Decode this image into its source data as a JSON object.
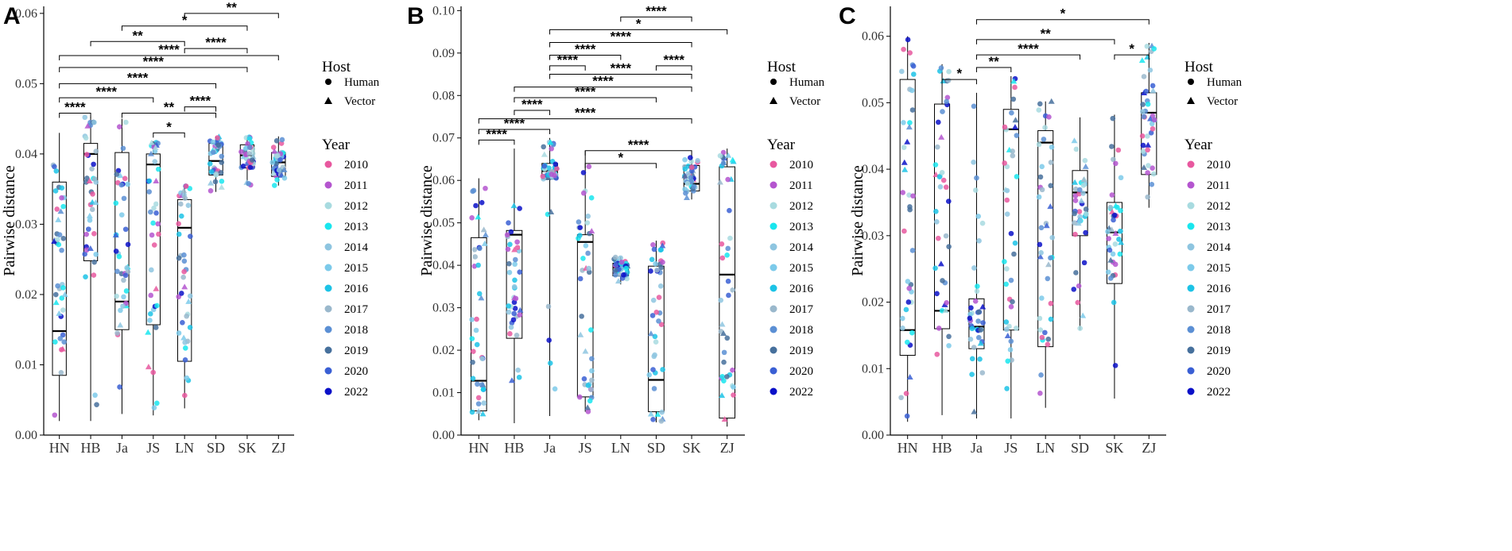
{
  "figure": {
    "categories": [
      "HN",
      "HB",
      "Ja",
      "JS",
      "LN",
      "SD",
      "SK",
      "ZJ"
    ],
    "ylabel": "Pairwise distance",
    "legend": {
      "host_title": "Host",
      "host_items": [
        {
          "label": "Human",
          "shape": "circle"
        },
        {
          "label": "Vector",
          "shape": "triangle"
        }
      ],
      "year_title": "Year",
      "years": [
        {
          "label": "2010",
          "color": "#e8589f"
        },
        {
          "label": "2011",
          "color": "#b455cf"
        },
        {
          "label": "2012",
          "color": "#a8dbe0"
        },
        {
          "label": "2013",
          "color": "#19e6ee"
        },
        {
          "label": "2014",
          "color": "#8ec5e0"
        },
        {
          "label": "2015",
          "color": "#7ccaea"
        },
        {
          "label": "2016",
          "color": "#1cc3e6"
        },
        {
          "label": "2017",
          "color": "#9ab8cc"
        },
        {
          "label": "2018",
          "color": "#5b8fd4"
        },
        {
          "label": "2019",
          "color": "#46709c"
        },
        {
          "label": "2020",
          "color": "#3a5fd4"
        },
        {
          "label": "2022",
          "color": "#0a10c8"
        }
      ]
    }
  },
  "chart_data": [
    {
      "type": "box",
      "panel": "A",
      "ylabel": "Pairwise distance",
      "ylim": [
        0,
        0.061
      ],
      "yticks": [
        "0.00",
        "0.01",
        "0.02",
        "0.03",
        "0.04",
        "0.05",
        "0.06"
      ],
      "categories": [
        "HN",
        "HB",
        "Ja",
        "JS",
        "LN",
        "SD",
        "SK",
        "ZJ"
      ],
      "boxes": [
        {
          "cat": "HN",
          "min": 0.002,
          "q1": 0.0085,
          "median": 0.0148,
          "q3": 0.036,
          "max": 0.043
        },
        {
          "cat": "HB",
          "min": 0.002,
          "q1": 0.0248,
          "median": 0.04,
          "q3": 0.0415,
          "max": 0.0453
        },
        {
          "cat": "Ja",
          "min": 0.003,
          "q1": 0.015,
          "median": 0.019,
          "q3": 0.0402,
          "max": 0.045
        },
        {
          "cat": "JS",
          "min": 0.0028,
          "q1": 0.0157,
          "median": 0.0385,
          "q3": 0.04,
          "max": 0.0418
        },
        {
          "cat": "LN",
          "min": 0.0038,
          "q1": 0.0105,
          "median": 0.0295,
          "q3": 0.0335,
          "max": 0.0355
        },
        {
          "cat": "SD",
          "min": 0.0346,
          "q1": 0.037,
          "median": 0.039,
          "q3": 0.0415,
          "max": 0.0425
        },
        {
          "cat": "SK",
          "min": 0.0355,
          "q1": 0.038,
          "median": 0.0398,
          "q3": 0.0413,
          "max": 0.0425
        },
        {
          "cat": "ZJ",
          "min": 0.0355,
          "q1": 0.0368,
          "median": 0.0388,
          "q3": 0.0402,
          "max": 0.0425
        }
      ],
      "comparisons": [
        {
          "from": "LN",
          "to": "ZJ",
          "y": 0.06,
          "label": "**"
        },
        {
          "from": "Ja",
          "to": "SK",
          "y": 0.0582,
          "label": "*"
        },
        {
          "from": "HB",
          "to": "LN",
          "y": 0.056,
          "label": "**"
        },
        {
          "from": "LN",
          "to": "SK",
          "y": 0.055,
          "label": "****"
        },
        {
          "from": "HN",
          "to": "ZJ",
          "y": 0.054,
          "label": "****"
        },
        {
          "from": "HN",
          "to": "SK",
          "y": 0.0523,
          "label": "****"
        },
        {
          "from": "HN",
          "to": "SD",
          "y": 0.05,
          "label": "****"
        },
        {
          "from": "HN",
          "to": "JS",
          "y": 0.048,
          "label": "****"
        },
        {
          "from": "LN",
          "to": "SD",
          "y": 0.0467,
          "label": "****"
        },
        {
          "from": "HN",
          "to": "HB",
          "y": 0.0458,
          "label": "****"
        },
        {
          "from": "Ja",
          "to": "SD",
          "y": 0.0458,
          "label": "**"
        },
        {
          "from": "JS",
          "to": "LN",
          "y": 0.043,
          "label": "*"
        }
      ]
    },
    {
      "type": "box",
      "panel": "B",
      "ylabel": "Pairwise distance",
      "ylim": [
        0,
        0.101
      ],
      "yticks": [
        "0.00",
        "0.01",
        "0.02",
        "0.03",
        "0.04",
        "0.05",
        "0.06",
        "0.07",
        "0.08",
        "0.09",
        "0.10"
      ],
      "categories": [
        "HN",
        "HB",
        "Ja",
        "JS",
        "LN",
        "SD",
        "SK",
        "ZJ"
      ],
      "boxes": [
        {
          "cat": "HN",
          "min": 0.0035,
          "q1": 0.0057,
          "median": 0.0128,
          "q3": 0.0465,
          "max": 0.0605
        },
        {
          "cat": "HB",
          "min": 0.0028,
          "q1": 0.0228,
          "median": 0.0472,
          "q3": 0.0482,
          "max": 0.0675
        },
        {
          "cat": "Ja",
          "min": 0.0045,
          "q1": 0.0603,
          "median": 0.0622,
          "q3": 0.064,
          "max": 0.07
        },
        {
          "cat": "JS",
          "min": 0.0055,
          "q1": 0.009,
          "median": 0.0455,
          "q3": 0.0472,
          "max": 0.067
        },
        {
          "cat": "LN",
          "min": 0.0355,
          "q1": 0.0375,
          "median": 0.0395,
          "q3": 0.0405,
          "max": 0.042
        },
        {
          "cat": "SD",
          "min": 0.003,
          "q1": 0.0055,
          "median": 0.013,
          "q3": 0.0398,
          "max": 0.0458
        },
        {
          "cat": "SK",
          "min": 0.0555,
          "q1": 0.0575,
          "median": 0.0592,
          "q3": 0.0635,
          "max": 0.066
        },
        {
          "cat": "ZJ",
          "min": 0.002,
          "q1": 0.004,
          "median": 0.0378,
          "q3": 0.0632,
          "max": 0.0675
        }
      ],
      "comparisons": [
        {
          "from": "LN",
          "to": "SK",
          "y": 0.0985,
          "label": "****"
        },
        {
          "from": "Ja",
          "to": "ZJ",
          "y": 0.0955,
          "label": "*"
        },
        {
          "from": "Ja",
          "to": "SK",
          "y": 0.0925,
          "label": "****"
        },
        {
          "from": "Ja",
          "to": "LN",
          "y": 0.0895,
          "label": "****"
        },
        {
          "from": "Ja",
          "to": "JS",
          "y": 0.087,
          "label": "****"
        },
        {
          "from": "SD",
          "to": "SK",
          "y": 0.087,
          "label": "****"
        },
        {
          "from": "Ja",
          "to": "SK",
          "y": 0.085,
          "label": "****"
        },
        {
          "from": "HB",
          "to": "SK",
          "y": 0.082,
          "label": "****"
        },
        {
          "from": "HB",
          "to": "SD",
          "y": 0.0795,
          "label": "****"
        },
        {
          "from": "HB",
          "to": "Ja",
          "y": 0.0765,
          "label": "****"
        },
        {
          "from": "HN",
          "to": "SK",
          "y": 0.0745,
          "label": "****"
        },
        {
          "from": "HN",
          "to": "Ja",
          "y": 0.072,
          "label": "****"
        },
        {
          "from": "HN",
          "to": "HB",
          "y": 0.0695,
          "label": "****"
        },
        {
          "from": "JS",
          "to": "SK",
          "y": 0.067,
          "label": "****"
        },
        {
          "from": "JS",
          "to": "SD",
          "y": 0.064,
          "label": "*"
        }
      ]
    },
    {
      "type": "box",
      "panel": "C",
      "ylabel": "Pairwise distance",
      "ylim": [
        0,
        0.0645
      ],
      "yticks": [
        "0.00",
        "0.01",
        "0.02",
        "0.03",
        "0.04",
        "0.05",
        "0.06"
      ],
      "categories": [
        "HN",
        "HB",
        "Ja",
        "JS",
        "LN",
        "SD",
        "SK",
        "ZJ"
      ],
      "boxes": [
        {
          "cat": "HN",
          "min": 0.002,
          "q1": 0.012,
          "median": 0.0158,
          "q3": 0.0535,
          "max": 0.06
        },
        {
          "cat": "HB",
          "min": 0.003,
          "q1": 0.016,
          "median": 0.0187,
          "q3": 0.0498,
          "max": 0.0558
        },
        {
          "cat": "Ja",
          "min": 0.0025,
          "q1": 0.013,
          "median": 0.0163,
          "q3": 0.0205,
          "max": 0.0515
        },
        {
          "cat": "JS",
          "min": 0.0025,
          "q1": 0.0158,
          "median": 0.046,
          "q3": 0.049,
          "max": 0.054
        },
        {
          "cat": "LN",
          "min": 0.0041,
          "q1": 0.0133,
          "median": 0.044,
          "q3": 0.0458,
          "max": 0.0502
        },
        {
          "cat": "SD",
          "min": 0.0158,
          "q1": 0.03,
          "median": 0.0365,
          "q3": 0.0398,
          "max": 0.0478
        },
        {
          "cat": "SK",
          "min": 0.0055,
          "q1": 0.0228,
          "median": 0.0305,
          "q3": 0.035,
          "max": 0.0482
        },
        {
          "cat": "ZJ",
          "min": 0.0342,
          "q1": 0.0392,
          "median": 0.0485,
          "q3": 0.0515,
          "max": 0.059
        }
      ],
      "comparisons": [
        {
          "from": "Ja",
          "to": "ZJ",
          "y": 0.0625,
          "label": "*"
        },
        {
          "from": "Ja",
          "to": "SK",
          "y": 0.0595,
          "label": "**"
        },
        {
          "from": "Ja",
          "to": "SD",
          "y": 0.0572,
          "label": "****"
        },
        {
          "from": "SK",
          "to": "ZJ",
          "y": 0.0572,
          "label": "*"
        },
        {
          "from": "Ja",
          "to": "JS",
          "y": 0.0553,
          "label": "**"
        },
        {
          "from": "HB",
          "to": "Ja",
          "y": 0.0535,
          "label": "*"
        }
      ]
    }
  ]
}
